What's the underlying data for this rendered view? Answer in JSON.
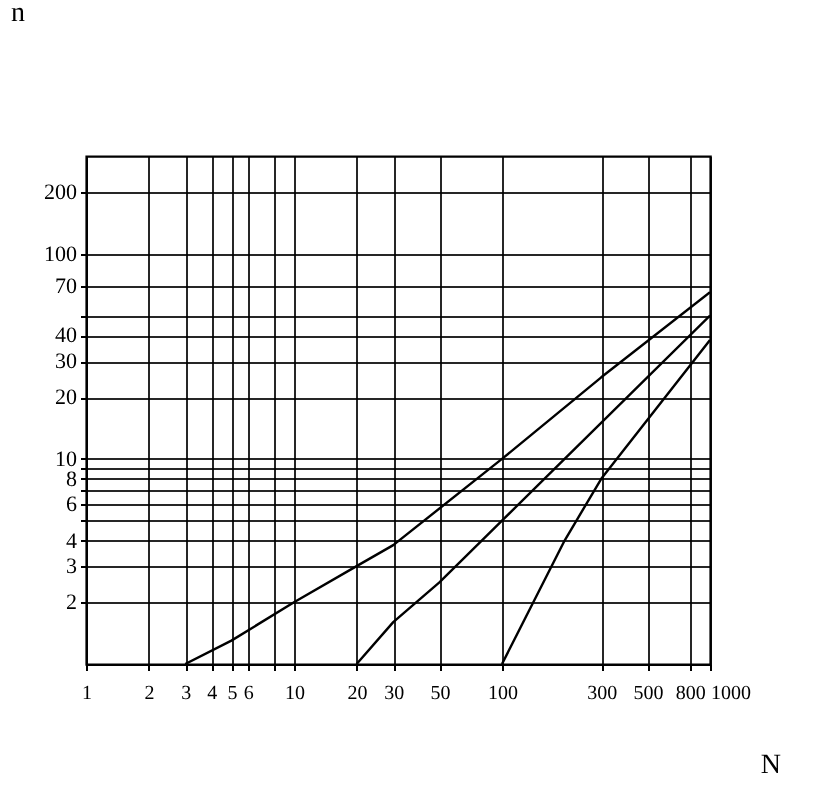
{
  "chart_data": {
    "type": "line",
    "xlabel": "N",
    "ylabel": "n",
    "log": "xy",
    "grid": true,
    "marker": "none",
    "line_style": "solid",
    "xlim": [
      1,
      1000
    ],
    "ylim": [
      1,
      300
    ],
    "xticks": [
      1,
      2,
      3,
      4,
      5,
      6,
      {
        "value": 8,
        "label": null
      },
      10,
      20,
      30,
      50,
      100,
      300,
      500,
      800,
      1000
    ],
    "yticks": [
      2,
      3,
      4,
      {
        "value": 5,
        "label": null
      },
      6,
      {
        "value": 7,
        "label": null
      },
      8,
      {
        "value": 9,
        "label": null
      },
      10,
      20,
      30,
      40,
      {
        "value": 50,
        "label": null
      },
      70,
      100,
      200
    ],
    "series": [
      {
        "color": "#000000",
        "x": [
          3,
          5,
          10,
          20,
          30,
          100,
          300,
          1000
        ],
        "values": [
          1,
          1.3,
          2,
          3,
          3.8,
          10,
          25,
          65
        ]
      },
      {
        "color": "#000000",
        "x": [
          20,
          30,
          50,
          100,
          200,
          1000
        ],
        "values": [
          1,
          1.6,
          2.5,
          5,
          10,
          50
        ]
      },
      {
        "color": "#000000",
        "x": [
          100,
          200,
          300,
          1000
        ],
        "values": [
          1,
          4,
          8,
          38
        ]
      }
    ]
  }
}
